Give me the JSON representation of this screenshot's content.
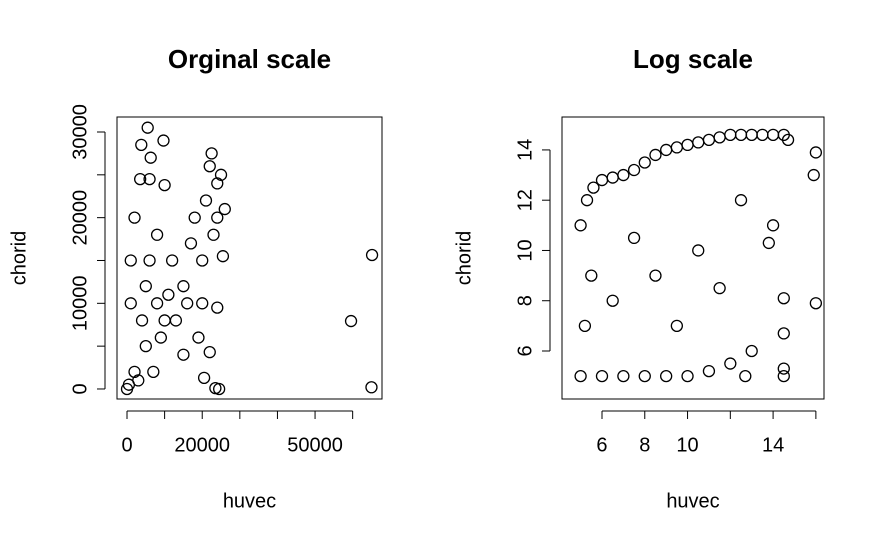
{
  "chart_data": [
    {
      "type": "scatter",
      "title": "Orginal scale",
      "x_label": "huvec",
      "y_label": "chorid",
      "xlim": [
        -2660,
        67800
      ],
      "ylim": [
        -1170,
        31750
      ],
      "xticks": [
        0,
        {
          "value": 10000,
          "label": null
        },
        20000,
        {
          "value": 30000,
          "label": null
        },
        {
          "value": 40000,
          "label": null
        },
        50000,
        {
          "value": 60000,
          "label": null
        }
      ],
      "yticks": [
        0,
        {
          "value": 5000,
          "label": null
        },
        10000,
        {
          "value": 15000,
          "label": null
        },
        20000,
        {
          "value": 25000,
          "label": null
        },
        30000
      ],
      "series": [
        {
          "name": "points",
          "color": "#000000",
          "x": [
            65160,
            59570,
            65000,
            5500,
            9700,
            3800,
            6300,
            10000,
            3500,
            6000,
            20500,
            23500,
            24500,
            22000,
            24000,
            25500,
            2000,
            5000,
            10000,
            15000,
            20000,
            24000,
            22000,
            25000,
            24000,
            18000,
            12000,
            8000,
            5000,
            1000,
            0,
            500,
            3000,
            1000,
            2000,
            8000,
            13000,
            16000,
            20000,
            19000,
            15000,
            7000,
            23000,
            21000,
            17000,
            11000,
            4000,
            6000,
            9000,
            26000,
            22500
          ],
          "values": [
            15640,
            7930,
            200,
            30500,
            29000,
            28500,
            27000,
            23800,
            24500,
            24500,
            1300,
            100,
            0,
            4300,
            9500,
            15500,
            2000,
            5000,
            8000,
            12000,
            15000,
            20000,
            26000,
            25000,
            24000,
            20000,
            15000,
            10000,
            12000,
            10000,
            0,
            500,
            1000,
            15000,
            20000,
            18000,
            8000,
            10000,
            10000,
            6000,
            4000,
            2000,
            18000,
            22000,
            17000,
            11000,
            8000,
            15000,
            6000,
            21000,
            27500
          ]
        }
      ]
    },
    {
      "type": "scatter",
      "title": "Log scale",
      "x_label": "huvec",
      "y_label": "chorid",
      "xlim": [
        4.13,
        16.38
      ],
      "ylim": [
        4.09,
        15.31
      ],
      "xticks": [
        6,
        8,
        10,
        {
          "value": 12,
          "label": null
        },
        14,
        {
          "value": 16,
          "label": null
        }
      ],
      "yticks": [
        6,
        8,
        10,
        12,
        14
      ],
      "series": [
        {
          "name": "points",
          "color": "#000000",
          "x": [
            16,
            16,
            15.9,
            14.5,
            14.5,
            14.5,
            14.5,
            13.8,
            12.7,
            5,
            5.2,
            5.5,
            5,
            5.3,
            5.6,
            6,
            6.5,
            7,
            7.5,
            8,
            8.5,
            9,
            9.5,
            10,
            10.5,
            11,
            11.5,
            12,
            12.5,
            13,
            13.5,
            14,
            14.5,
            14.7,
            6,
            7,
            8,
            9,
            10,
            11,
            12,
            13,
            6.5,
            8.5,
            10.5,
            12.5,
            14,
            7.5,
            9.5,
            11.5
          ],
          "values": [
            13.9,
            7.9,
            13.0,
            8.1,
            6.7,
            5.3,
            5.0,
            10.3,
            5.0,
            5,
            7,
            9,
            11,
            12,
            12.5,
            12.8,
            12.9,
            13,
            13.2,
            13.5,
            13.8,
            14,
            14.1,
            14.2,
            14.3,
            14.4,
            14.5,
            14.6,
            14.6,
            14.6,
            14.6,
            14.6,
            14.6,
            14.4,
            5,
            5,
            5,
            5,
            5,
            5.2,
            5.5,
            6,
            8,
            9,
            10,
            12,
            11,
            10.5,
            7,
            8.5
          ]
        }
      ]
    }
  ]
}
